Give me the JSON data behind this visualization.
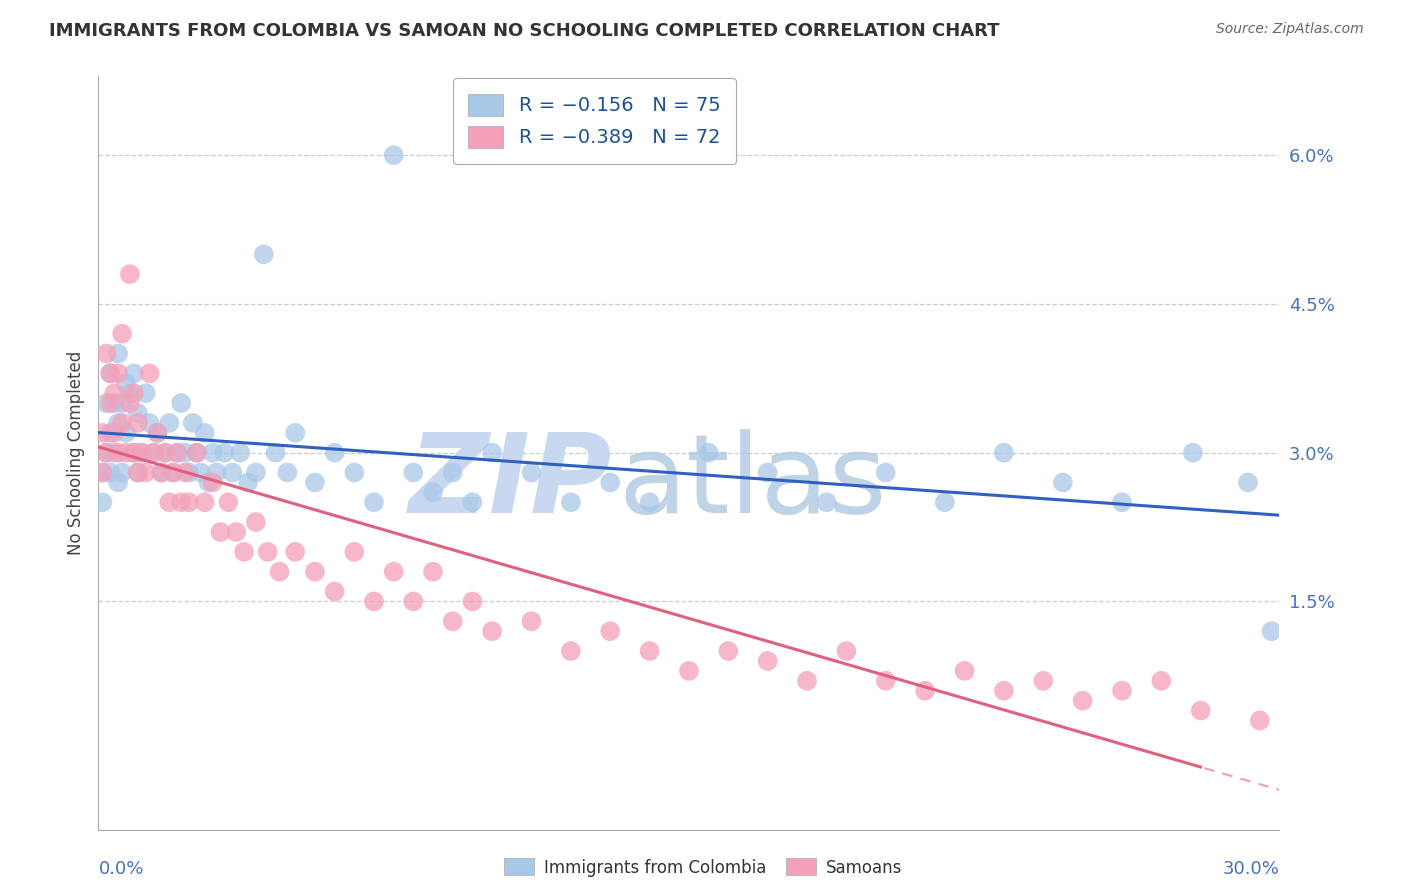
{
  "title": "IMMIGRANTS FROM COLOMBIA VS SAMOAN NO SCHOOLING COMPLETED CORRELATION CHART",
  "source": "Source: ZipAtlas.com",
  "ylabel": "No Schooling Completed",
  "right_yticks": [
    "6.0%",
    "4.5%",
    "3.0%",
    "1.5%"
  ],
  "right_ytick_vals": [
    0.06,
    0.045,
    0.03,
    0.015
  ],
  "R_colombia": -0.156,
  "N_colombia": 75,
  "R_samoan": -0.389,
  "N_samoan": 72,
  "color_colombia": "#a8c8e8",
  "color_samoan": "#f4a0b8",
  "line_colombia": "#3060c0",
  "line_samoan": "#e06080",
  "background_color": "#ffffff",
  "xlim": [
    0.0,
    0.3
  ],
  "ylim": [
    -0.008,
    0.068
  ],
  "colombia_x": [
    0.001,
    0.001,
    0.002,
    0.002,
    0.003,
    0.003,
    0.003,
    0.004,
    0.004,
    0.005,
    0.005,
    0.005,
    0.006,
    0.006,
    0.007,
    0.007,
    0.008,
    0.009,
    0.009,
    0.01,
    0.01,
    0.011,
    0.012,
    0.013,
    0.014,
    0.015,
    0.016,
    0.017,
    0.018,
    0.019,
    0.02,
    0.021,
    0.022,
    0.023,
    0.024,
    0.025,
    0.026,
    0.027,
    0.028,
    0.029,
    0.03,
    0.032,
    0.034,
    0.036,
    0.038,
    0.04,
    0.042,
    0.045,
    0.048,
    0.05,
    0.055,
    0.06,
    0.065,
    0.07,
    0.075,
    0.08,
    0.085,
    0.09,
    0.095,
    0.1,
    0.11,
    0.12,
    0.13,
    0.14,
    0.155,
    0.17,
    0.185,
    0.2,
    0.215,
    0.23,
    0.245,
    0.26,
    0.278,
    0.292,
    0.298
  ],
  "colombia_y": [
    0.025,
    0.028,
    0.03,
    0.035,
    0.028,
    0.032,
    0.038,
    0.03,
    0.035,
    0.027,
    0.033,
    0.04,
    0.028,
    0.035,
    0.037,
    0.032,
    0.036,
    0.03,
    0.038,
    0.028,
    0.034,
    0.03,
    0.036,
    0.033,
    0.03,
    0.032,
    0.028,
    0.03,
    0.033,
    0.028,
    0.03,
    0.035,
    0.03,
    0.028,
    0.033,
    0.03,
    0.028,
    0.032,
    0.027,
    0.03,
    0.028,
    0.03,
    0.028,
    0.03,
    0.027,
    0.028,
    0.05,
    0.03,
    0.028,
    0.032,
    0.027,
    0.03,
    0.028,
    0.025,
    0.06,
    0.028,
    0.026,
    0.028,
    0.025,
    0.03,
    0.028,
    0.025,
    0.027,
    0.025,
    0.03,
    0.028,
    0.025,
    0.028,
    0.025,
    0.03,
    0.027,
    0.025,
    0.03,
    0.027,
    0.012
  ],
  "samoan_x": [
    0.001,
    0.001,
    0.002,
    0.002,
    0.003,
    0.003,
    0.004,
    0.004,
    0.005,
    0.005,
    0.006,
    0.006,
    0.007,
    0.008,
    0.008,
    0.009,
    0.009,
    0.01,
    0.01,
    0.011,
    0.012,
    0.013,
    0.014,
    0.015,
    0.016,
    0.017,
    0.018,
    0.019,
    0.02,
    0.021,
    0.022,
    0.023,
    0.025,
    0.027,
    0.029,
    0.031,
    0.033,
    0.035,
    0.037,
    0.04,
    0.043,
    0.046,
    0.05,
    0.055,
    0.06,
    0.065,
    0.07,
    0.075,
    0.08,
    0.085,
    0.09,
    0.095,
    0.1,
    0.11,
    0.12,
    0.13,
    0.14,
    0.15,
    0.16,
    0.17,
    0.18,
    0.19,
    0.2,
    0.21,
    0.22,
    0.23,
    0.24,
    0.25,
    0.26,
    0.27,
    0.28,
    0.295
  ],
  "samoan_y": [
    0.028,
    0.032,
    0.03,
    0.04,
    0.035,
    0.038,
    0.032,
    0.036,
    0.03,
    0.038,
    0.033,
    0.042,
    0.03,
    0.035,
    0.048,
    0.03,
    0.036,
    0.028,
    0.033,
    0.03,
    0.028,
    0.038,
    0.03,
    0.032,
    0.028,
    0.03,
    0.025,
    0.028,
    0.03,
    0.025,
    0.028,
    0.025,
    0.03,
    0.025,
    0.027,
    0.022,
    0.025,
    0.022,
    0.02,
    0.023,
    0.02,
    0.018,
    0.02,
    0.018,
    0.016,
    0.02,
    0.015,
    0.018,
    0.015,
    0.018,
    0.013,
    0.015,
    0.012,
    0.013,
    0.01,
    0.012,
    0.01,
    0.008,
    0.01,
    0.009,
    0.007,
    0.01,
    0.007,
    0.006,
    0.008,
    0.006,
    0.007,
    0.005,
    0.006,
    0.007,
    0.004,
    0.003
  ],
  "legend_text_color": "#1a5296",
  "legend_number_color": "#1a5296",
  "watermark_zip_color": "#c8d8f0",
  "watermark_atlas_color": "#b0c8e0"
}
